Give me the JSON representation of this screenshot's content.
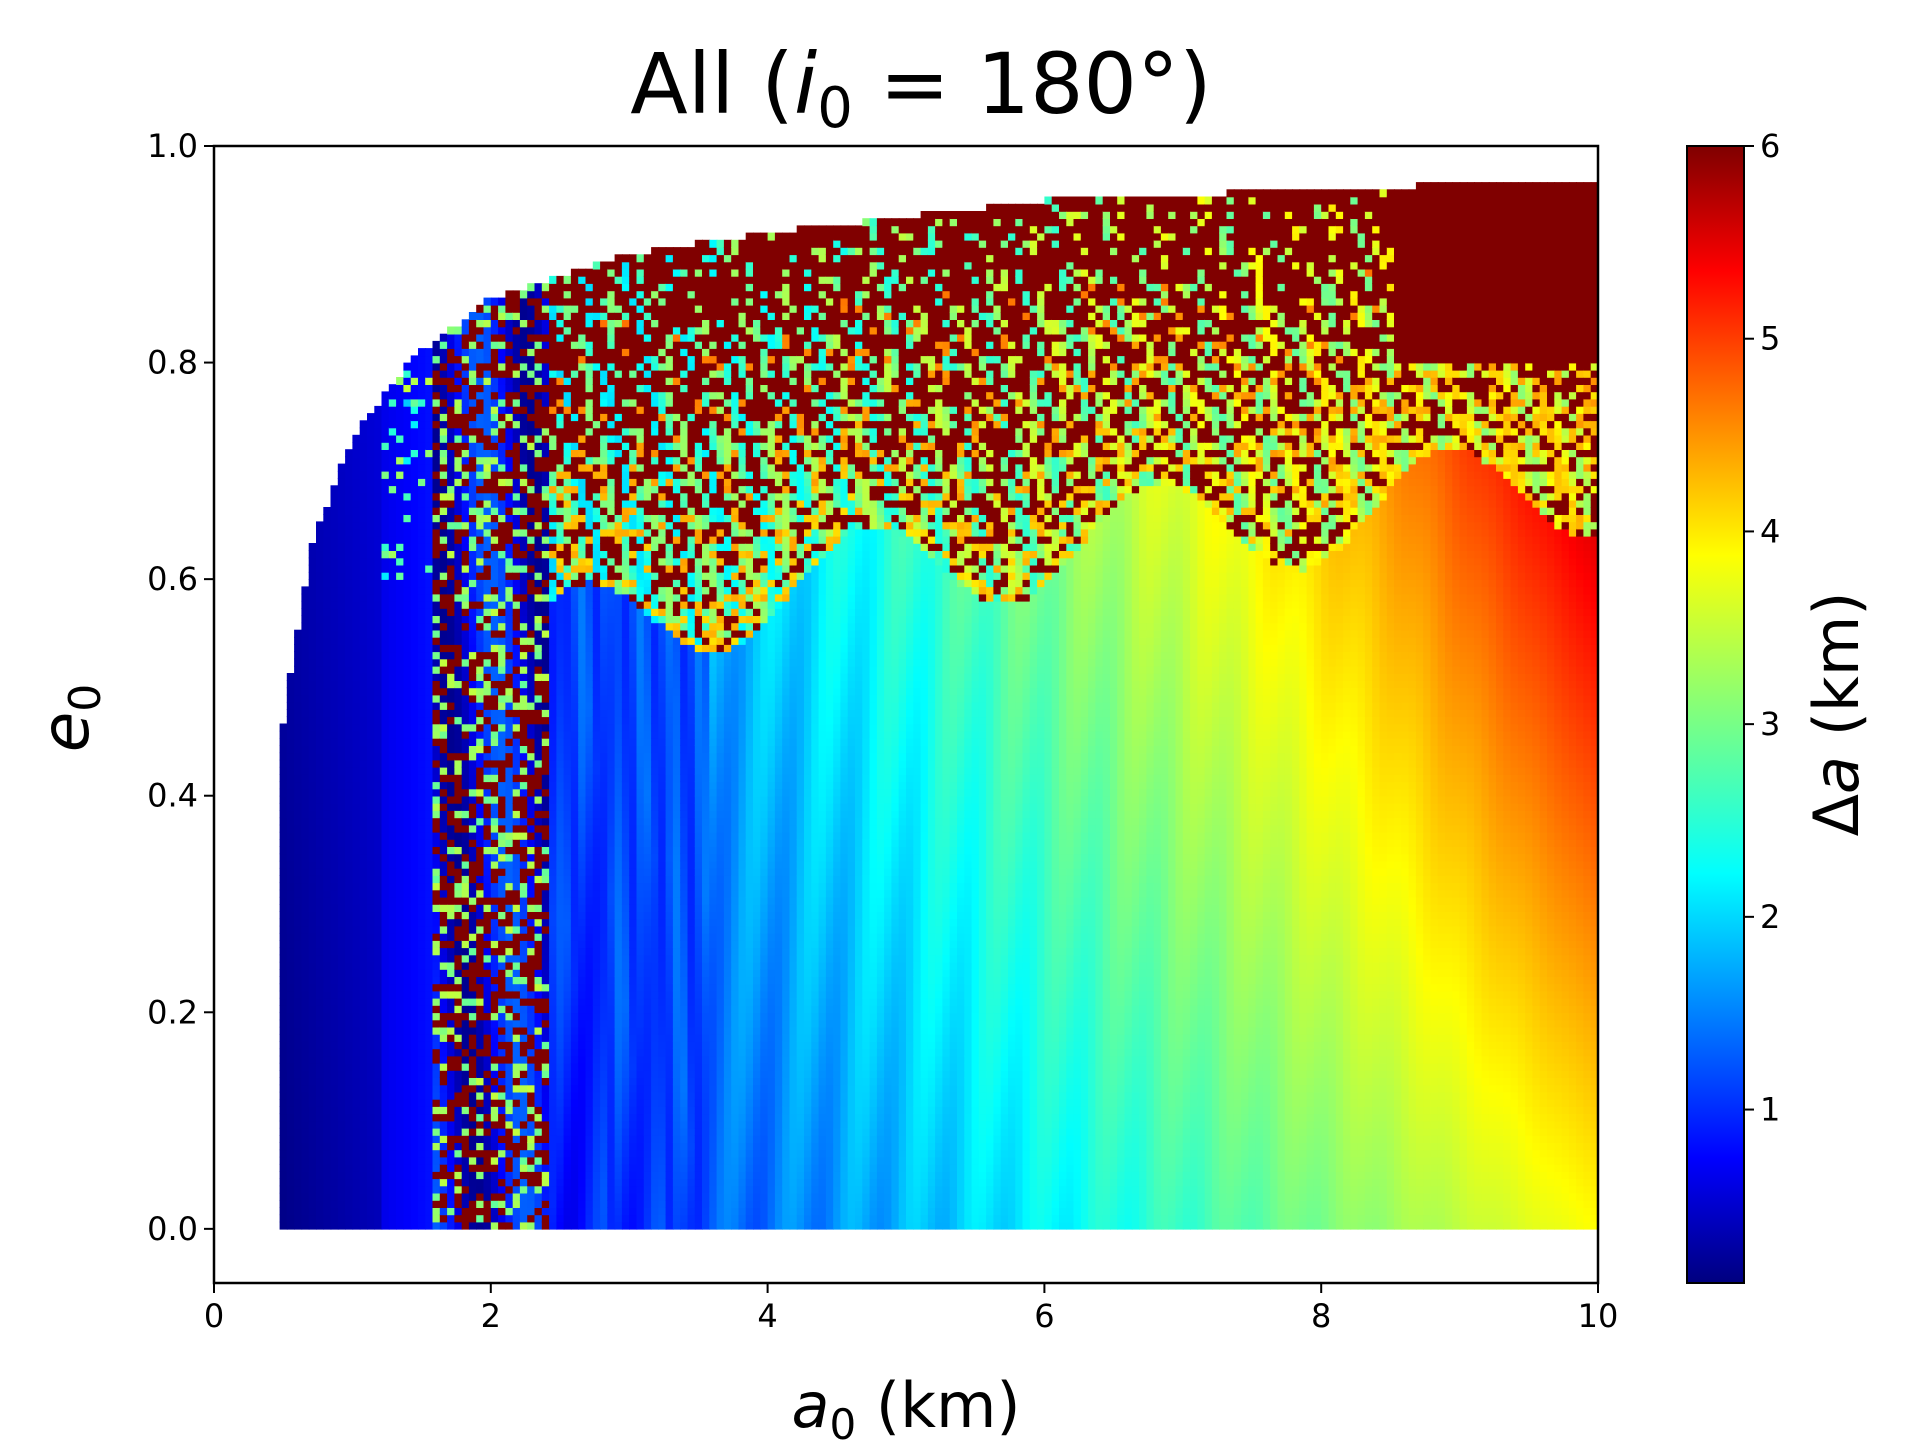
{
  "chart_data": {
    "type": "heatmap",
    "title": "All (i₀ = 180°)",
    "title_parts": {
      "prefix": "All (",
      "var": "i",
      "sub": "0",
      "suffix": " = 180°)"
    },
    "xlabel": "a₀ (km)",
    "xlabel_parts": {
      "var": "a",
      "sub": "0",
      "unit": " (km)"
    },
    "ylabel": "e₀",
    "ylabel_parts": {
      "var": "e",
      "sub": "0"
    },
    "colorbar_label": "Δa (km)",
    "colorbar_label_parts": {
      "sym": "Δ",
      "var": "a",
      "unit": " (km)"
    },
    "xlim": [
      0,
      10
    ],
    "ylim": [
      -0.05,
      1.0
    ],
    "xticks": [
      0,
      2,
      4,
      6,
      8,
      10
    ],
    "yticks": [
      0.0,
      0.2,
      0.4,
      0.6,
      0.8,
      1.0
    ],
    "xtick_labels": [
      "0",
      "2",
      "4",
      "6",
      "8",
      "10"
    ],
    "ytick_labels": [
      "0.0",
      "0.2",
      "0.4",
      "0.6",
      "0.8",
      "1.0"
    ],
    "colorbar_range": [
      0.1,
      6
    ],
    "colorbar_ticks": [
      1,
      2,
      3,
      4,
      5,
      6
    ],
    "colorbar_tick_labels": [
      "1",
      "2",
      "3",
      "4",
      "5",
      "6"
    ],
    "colormap": "jet",
    "data_extent": {
      "a_min": 0.5,
      "a_max": 10,
      "e_min": 0,
      "e_max_at_a": [
        [
          0.5,
          0.47
        ],
        [
          0.7,
          0.63
        ],
        [
          1.0,
          0.73
        ],
        [
          1.4,
          0.8
        ],
        [
          2.0,
          0.86
        ],
        [
          3.0,
          0.9
        ],
        [
          4.0,
          0.92
        ],
        [
          6.0,
          0.95
        ],
        [
          8.0,
          0.96
        ],
        [
          10.0,
          0.97
        ]
      ]
    },
    "regions": [
      {
        "description": "dark blue stable band",
        "a_range": [
          0.5,
          1.2
        ],
        "value_km": 0.3
      },
      {
        "description": "blue band",
        "a_range": [
          1.2,
          1.6
        ],
        "value_km": 0.8
      },
      {
        "description": "chaotic mixed region",
        "a_range": [
          1.6,
          2.4
        ],
        "value_km": "mixed"
      },
      {
        "description": "high-e chaotic dark red",
        "a_range": [
          2.4,
          10
        ],
        "e_above": 0.6,
        "value_km": 6
      },
      {
        "description": "low-e smooth gradient",
        "a_range": [
          2.4,
          10
        ],
        "e_below": 0.6,
        "value_km_start": 0.8,
        "value_km_end": 4.2
      }
    ]
  }
}
